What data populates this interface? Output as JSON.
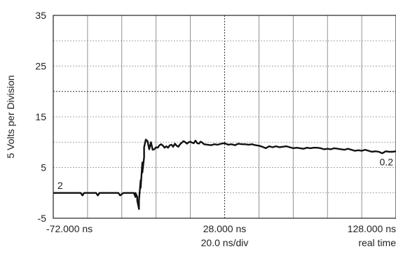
{
  "chart_data": {
    "type": "line",
    "title": "",
    "ylabel": "5 Volts per Division",
    "ylim": [
      -5,
      35
    ],
    "xlim": [
      -72,
      128
    ],
    "y_ticks": [
      "35",
      "25",
      "15",
      "5",
      "-5"
    ],
    "x_tick_labels": [
      {
        "value": "-72.000 ns",
        "sub": ""
      },
      {
        "value": "28.000 ns",
        "sub": "20.0 ns/div"
      },
      {
        "value": "128.000 ns",
        "sub": "real time"
      }
    ],
    "grid": "dotted, 10 x 8 divisions",
    "series": [
      {
        "label": "2",
        "end_label": "0.2",
        "color": "#111111",
        "x": [
          -72,
          -56,
          -55,
          -54,
          -52,
          -47,
          -46,
          -45,
          -43,
          -34,
          -33,
          -31,
          -25,
          -24,
          -24,
          -23,
          -23,
          -22,
          -22,
          -21,
          -21,
          -20,
          -20,
          -19,
          -19,
          -18,
          -17,
          -16,
          -15,
          -14,
          -13,
          -12,
          -11,
          -10,
          -9,
          -8,
          -7,
          -6,
          -5,
          -4,
          -3,
          -2,
          -1,
          0,
          1,
          2,
          3,
          4,
          5,
          6,
          7,
          8,
          9,
          10,
          11,
          12,
          13,
          14,
          15,
          16,
          18,
          20,
          22,
          24,
          26,
          28,
          30,
          32,
          34,
          36,
          38,
          40,
          42,
          44,
          46,
          48,
          50,
          52,
          54,
          56,
          58,
          60,
          62,
          64,
          66,
          68,
          70,
          72,
          74,
          76,
          78,
          80,
          82,
          84,
          86,
          88,
          90,
          92,
          94,
          96,
          98,
          100,
          102,
          104,
          106,
          108,
          110,
          112,
          114,
          116,
          118,
          120,
          122,
          124,
          126,
          128
        ],
        "y": [
          0,
          0,
          -0.5,
          0,
          0,
          0,
          -0.5,
          0,
          0,
          0,
          -0.5,
          0,
          0,
          -0.8,
          0,
          -0.8,
          -1.5,
          -3.2,
          -1.5,
          2.5,
          1,
          6,
          4,
          7,
          9,
          10.5,
          10.2,
          8.6,
          10,
          8.5,
          8.6,
          9,
          8.9,
          9.4,
          9.6,
          9.3,
          8.9,
          9.2,
          8.9,
          9.4,
          9.5,
          9.1,
          9.7,
          9.3,
          9.1,
          9.6,
          9.9,
          10.2,
          10,
          9.7,
          10,
          10.1,
          9.9,
          9.8,
          10.3,
          9.8,
          9.7,
          10.1,
          9.9,
          9.6,
          9.5,
          9.4,
          9.6,
          9.5,
          9.7,
          9.8,
          9.5,
          9.6,
          9.4,
          9.7,
          9.6,
          9.6,
          9.5,
          9.6,
          9.4,
          9.3,
          9.1,
          8.8,
          9.2,
          9,
          9.2,
          9,
          9.1,
          9.2,
          9,
          8.8,
          8.9,
          8.8,
          8.7,
          8.9,
          8.8,
          8.9,
          8.9,
          8.8,
          8.6,
          8.7,
          8.6,
          8.8,
          8.7,
          8.6,
          8.5,
          8.7,
          8.5,
          8.3,
          8.4,
          8.3,
          8.5,
          8.3,
          8.1,
          8.2,
          8.1,
          7.8,
          8.2,
          8.1,
          8.1,
          8.2
        ]
      }
    ]
  }
}
